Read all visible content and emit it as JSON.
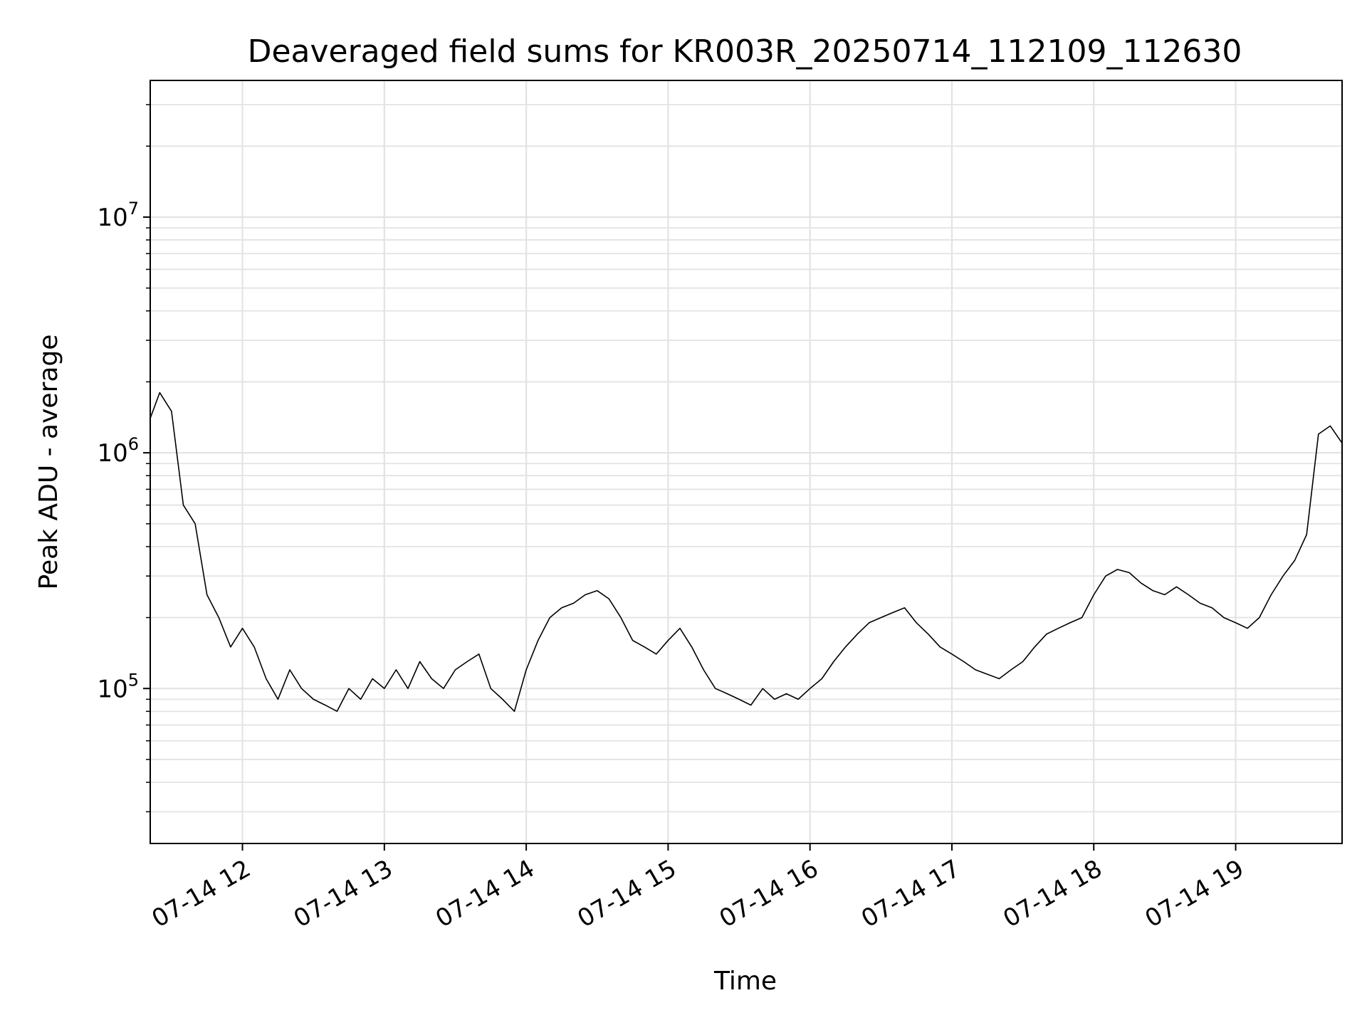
{
  "chart_data": {
    "type": "line",
    "title": "Deaveraged field sums for KR003R_20250714_112109_112630",
    "xlabel": "Time",
    "ylabel": "Peak ADU - average",
    "yscale": "log",
    "ylim": [
      22000,
      38000000
    ],
    "xlim": [
      "07-14 11:21",
      "07-14 19:45"
    ],
    "x_ticks": [
      "07-14 12",
      "07-14 13",
      "07-14 14",
      "07-14 15",
      "07-14 16",
      "07-14 17",
      "07-14 18",
      "07-14 19"
    ],
    "y_ticks": [
      {
        "base": "10",
        "exp": "5",
        "value": 100000
      },
      {
        "base": "10",
        "exp": "6",
        "value": 1000000
      },
      {
        "base": "10",
        "exp": "7",
        "value": 10000000
      }
    ],
    "grid": true,
    "line_color": "#000000",
    "series": [
      {
        "x": [
          "07-14 11:21",
          "07-14 11:25",
          "07-14 11:30",
          "07-14 11:35",
          "07-14 11:40",
          "07-14 11:45",
          "07-14 11:50",
          "07-14 11:55",
          "07-14 12:00",
          "07-14 12:05",
          "07-14 12:10",
          "07-14 12:15",
          "07-14 12:20",
          "07-14 12:25",
          "07-14 12:30",
          "07-14 12:35",
          "07-14 12:40",
          "07-14 12:45",
          "07-14 12:50",
          "07-14 12:55",
          "07-14 13:00",
          "07-14 13:05",
          "07-14 13:10",
          "07-14 13:15",
          "07-14 13:20",
          "07-14 13:25",
          "07-14 13:30",
          "07-14 13:35",
          "07-14 13:40",
          "07-14 13:45",
          "07-14 13:50",
          "07-14 13:55",
          "07-14 14:00",
          "07-14 14:05",
          "07-14 14:10",
          "07-14 14:15",
          "07-14 14:20",
          "07-14 14:25",
          "07-14 14:30",
          "07-14 14:35",
          "07-14 14:40",
          "07-14 14:45",
          "07-14 14:50",
          "07-14 14:55",
          "07-14 15:00",
          "07-14 15:05",
          "07-14 15:10",
          "07-14 15:15",
          "07-14 15:20",
          "07-14 15:25",
          "07-14 15:30",
          "07-14 15:35",
          "07-14 15:40",
          "07-14 15:45",
          "07-14 15:50",
          "07-14 15:55",
          "07-14 16:00",
          "07-14 16:05",
          "07-14 16:10",
          "07-14 16:15",
          "07-14 16:20",
          "07-14 16:25",
          "07-14 16:30",
          "07-14 16:35",
          "07-14 16:40",
          "07-14 16:45",
          "07-14 16:50",
          "07-14 16:55",
          "07-14 17:00",
          "07-14 17:05",
          "07-14 17:10",
          "07-14 17:15",
          "07-14 17:20",
          "07-14 17:25",
          "07-14 17:30",
          "07-14 17:35",
          "07-14 17:40",
          "07-14 17:45",
          "07-14 17:50",
          "07-14 17:55",
          "07-14 18:00",
          "07-14 18:05",
          "07-14 18:10",
          "07-14 18:15",
          "07-14 18:20",
          "07-14 18:25",
          "07-14 18:30",
          "07-14 18:35",
          "07-14 18:40",
          "07-14 18:45",
          "07-14 18:50",
          "07-14 18:55",
          "07-14 19:00",
          "07-14 19:05",
          "07-14 19:10",
          "07-14 19:15",
          "07-14 19:20",
          "07-14 19:25",
          "07-14 19:30",
          "07-14 19:35",
          "07-14 19:40",
          "07-14 19:45"
        ],
        "y": [
          1400000,
          1800000,
          1500000,
          600000,
          500000,
          250000,
          200000,
          150000,
          180000,
          150000,
          110000,
          90000,
          120000,
          100000,
          90000,
          85000,
          80000,
          100000,
          90000,
          110000,
          100000,
          120000,
          100000,
          130000,
          110000,
          100000,
          120000,
          130000,
          140000,
          100000,
          90000,
          80000,
          120000,
          160000,
          200000,
          220000,
          230000,
          250000,
          260000,
          240000,
          200000,
          160000,
          150000,
          140000,
          160000,
          180000,
          150000,
          120000,
          100000,
          95000,
          90000,
          85000,
          100000,
          90000,
          95000,
          90000,
          100000,
          110000,
          130000,
          150000,
          170000,
          190000,
          200000,
          210000,
          220000,
          190000,
          170000,
          150000,
          140000,
          130000,
          120000,
          115000,
          110000,
          120000,
          130000,
          150000,
          170000,
          180000,
          190000,
          200000,
          250000,
          300000,
          320000,
          310000,
          280000,
          260000,
          250000,
          270000,
          250000,
          230000,
          220000,
          200000,
          190000,
          180000,
          200000,
          250000,
          300000,
          350000,
          450000,
          1200000,
          1300000,
          1100000
        ]
      }
    ]
  }
}
